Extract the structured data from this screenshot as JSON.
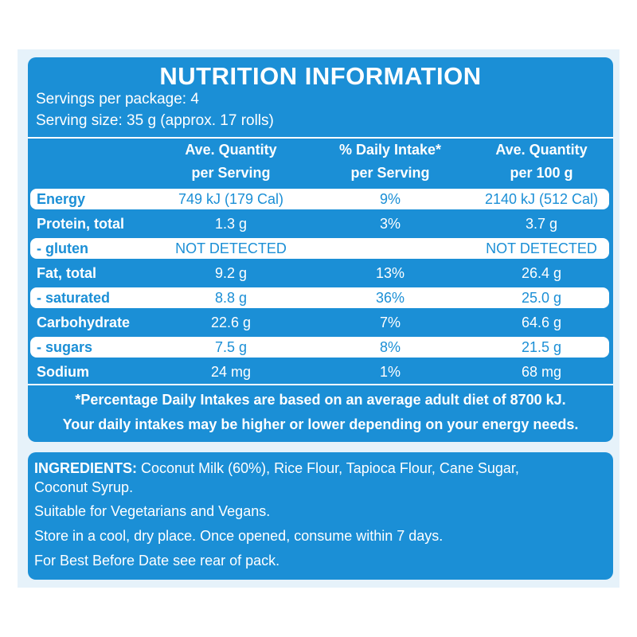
{
  "header": {
    "title": "NUTRITION INFORMATION",
    "lines": [
      "Servings per package: 4",
      "Serving size: 35 g (approx. 17 rolls)"
    ]
  },
  "table": {
    "columns": [
      [
        "Ave. Quantity",
        "per Serving"
      ],
      [
        "% Daily Intake*",
        "per Serving"
      ],
      [
        "Ave. Quantity",
        "per 100 g"
      ]
    ],
    "rows": [
      {
        "cells": [
          "Energy",
          "749 kJ (179 Cal)",
          "9%",
          "2140 kJ (512 Cal)"
        ],
        "highlight": true
      },
      {
        "cells": [
          "Protein, total",
          "1.3 g",
          "3%",
          "3.7 g"
        ],
        "highlight": false
      },
      {
        "cells": [
          "- gluten",
          "NOT DETECTED",
          null,
          "NOT DETECTED"
        ],
        "highlight": true
      },
      {
        "cells": [
          "Fat, total",
          "9.2 g",
          "13%",
          "26.4 g"
        ],
        "highlight": false
      },
      {
        "cells": [
          "- saturated",
          "8.8 g",
          "36%",
          "25.0 g"
        ],
        "highlight": true
      },
      {
        "cells": [
          "Carbohydrate",
          "22.6 g",
          "7%",
          "64.6 g"
        ],
        "highlight": false
      },
      {
        "cells": [
          "- sugars",
          "7.5 g",
          "8%",
          "21.5 g"
        ],
        "highlight": true
      },
      {
        "cells": [
          "Sodium",
          "24 mg",
          "1%",
          "68 mg"
        ],
        "highlight": false
      }
    ],
    "footnote": [
      "*Percentage Daily Intakes are based on an average adult diet of 8700 kJ.",
      "Your daily intakes may be higher or lower depending on your energy needs."
    ]
  },
  "ingredients": {
    "label": "INGREDIENTS:",
    "text": "Coconut Milk (60%), Rice Flour, Tapioca Flour, Cane Sugar, Coconut Syrup.",
    "notes": [
      "Suitable for Vegetarians and Vegans.",
      "Store in a cool, dry place. Once opened, consume within 7 days.",
      "For Best Before Date see rear of pack."
    ]
  }
}
